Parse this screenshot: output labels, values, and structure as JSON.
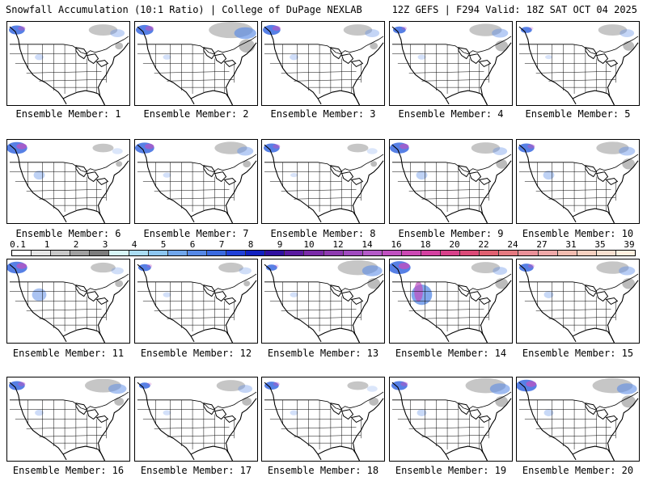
{
  "header": {
    "title": "Snowfall Accumulation (10:1 Ratio) | College of DuPage NEXLAB",
    "run_info": "12Z GEFS | F294 Valid: 18Z SAT OCT 04 2025"
  },
  "colorbar": {
    "labels": [
      "0.1",
      "1",
      "2",
      "3",
      "4",
      "5",
      "6",
      "7",
      "8",
      "9",
      "10",
      "12",
      "14",
      "16",
      "18",
      "20",
      "22",
      "24",
      "27",
      "31",
      "35",
      "39"
    ],
    "colors": [
      "#ffffff",
      "#e6e6e6",
      "#c8c8c8",
      "#a0a0a0",
      "#7d7d7d",
      "#d6f5f5",
      "#aaddf2",
      "#8cc6f0",
      "#6fa6ec",
      "#5588e6",
      "#3a6ae0",
      "#2040d8",
      "#1020c0",
      "#3010a0",
      "#5a1aa0",
      "#7a2aa8",
      "#8e3ab0",
      "#a04abf",
      "#b45ac8",
      "#c050c0",
      "#cc48b4",
      "#d440a0",
      "#d8408a",
      "#dc4a78",
      "#e06070",
      "#e57a80",
      "#ea9098",
      "#efa8a8",
      "#f2bcb0",
      "#f5d0c0",
      "#f8e0d0",
      "#fff0e0"
    ]
  },
  "members": [
    {
      "caption": "Ensemble Member: 1",
      "west": 0.6,
      "east": 0.5,
      "ne": 0.3,
      "rockies": 0.15
    },
    {
      "caption": "Ensemble Member: 2",
      "west": 0.7,
      "east": 0.9,
      "ne": 0.8,
      "rockies": 0.1
    },
    {
      "caption": "Ensemble Member: 3",
      "west": 0.7,
      "east": 0.5,
      "ne": 0.3,
      "rockies": 0.15
    },
    {
      "caption": "Ensemble Member: 4",
      "west": 0.4,
      "east": 0.6,
      "ne": 0.6,
      "rockies": 0.1
    },
    {
      "caption": "Ensemble Member: 5",
      "west": 0.3,
      "east": 0.5,
      "ne": 0.5,
      "rockies": 0.05
    },
    {
      "caption": "Ensemble Member: 6",
      "west": 0.9,
      "east": 0.3,
      "ne": 0.2,
      "rockies": 0.3
    },
    {
      "caption": "Ensemble Member: 7",
      "west": 0.8,
      "east": 0.6,
      "ne": 0.3,
      "rockies": 0.1
    },
    {
      "caption": "Ensemble Member: 8",
      "west": 0.6,
      "east": 0.3,
      "ne": 0.2,
      "rockies": 0.05
    },
    {
      "caption": "Ensemble Member: 9",
      "west": 0.8,
      "east": 0.5,
      "ne": 0.5,
      "rockies": 0.3
    },
    {
      "caption": "Ensemble Member: 10",
      "west": 0.6,
      "east": 0.6,
      "ne": 0.6,
      "rockies": 0.3
    },
    {
      "caption": "Ensemble Member: 11",
      "west": 0.9,
      "east": 0.4,
      "ne": 0.3,
      "rockies": 0.5
    },
    {
      "caption": "Ensemble Member: 12",
      "west": 0.4,
      "east": 0.4,
      "ne": 0.2,
      "rockies": 0.1
    },
    {
      "caption": "Ensemble Member: 13",
      "west": 0.3,
      "east": 0.8,
      "ne": 0.6,
      "rockies": 0.1
    },
    {
      "caption": "Ensemble Member: 14",
      "west": 1.0,
      "east": 0.5,
      "ne": 0.6,
      "rockies": 0.9
    },
    {
      "caption": "Ensemble Member: 15",
      "west": 0.5,
      "east": 0.6,
      "ne": 0.6,
      "rockies": 0.2
    },
    {
      "caption": "Ensemble Member: 16",
      "west": 0.6,
      "east": 0.7,
      "ne": 0.4,
      "rockies": 0.15
    },
    {
      "caption": "Ensemble Member: 17",
      "west": 0.3,
      "east": 0.5,
      "ne": 0.4,
      "rockies": 0.1
    },
    {
      "caption": "Ensemble Member: 18",
      "west": 0.5,
      "east": 0.3,
      "ne": 0.4,
      "rockies": 0.1
    },
    {
      "caption": "Ensemble Member: 19",
      "west": 0.6,
      "east": 0.8,
      "ne": 0.6,
      "rockies": 0.2
    },
    {
      "caption": "Ensemble Member: 20",
      "west": 0.9,
      "east": 0.8,
      "ne": 0.7,
      "rockies": 0.2
    }
  ]
}
